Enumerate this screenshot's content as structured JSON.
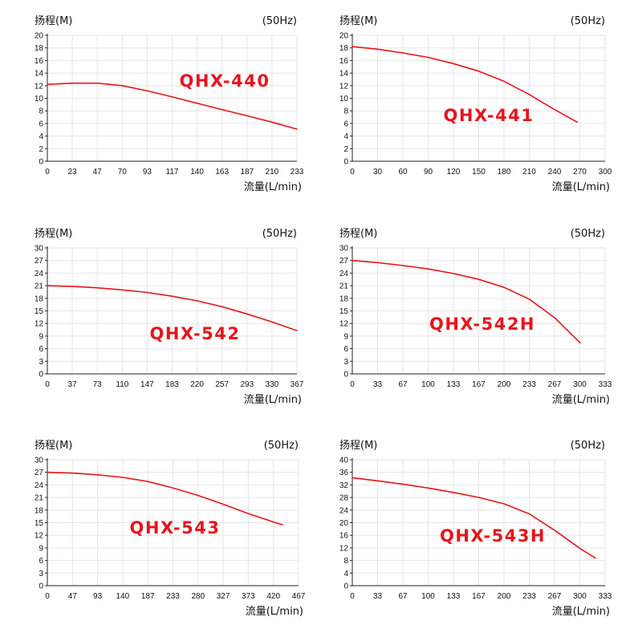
{
  "chart_data": [
    {
      "type": "line",
      "title": "QHX-440",
      "ylabel": "扬程(M)",
      "xlabel": "流量(L/min)",
      "freq_label": "(50Hz)",
      "x_ticks": [
        "0",
        "23",
        "47",
        "70",
        "93",
        "117",
        "140",
        "163",
        "187",
        "210",
        "233"
      ],
      "y_ticks": [
        "0",
        "2",
        "4",
        "6",
        "8",
        "10",
        "12",
        "14",
        "16",
        "18",
        "20"
      ],
      "xlim": [
        0,
        233
      ],
      "ylim": [
        0,
        20
      ],
      "series": [
        {
          "name": "QHX-440",
          "color": "#e8141c",
          "x": [
            0,
            23,
            47,
            70,
            93,
            117,
            140,
            163,
            187,
            210,
            233
          ],
          "y": [
            12.2,
            12.4,
            12.4,
            12.0,
            11.2,
            10.2,
            9.2,
            8.2,
            7.2,
            6.2,
            5.1
          ]
        }
      ]
    },
    {
      "type": "line",
      "title": "QHX-441",
      "ylabel": "扬程(M)",
      "xlabel": "流量(L/min)",
      "freq_label": "(50Hz)",
      "x_ticks": [
        "0",
        "30",
        "60",
        "90",
        "120",
        "150",
        "180",
        "210",
        "240",
        "270",
        "300"
      ],
      "y_ticks": [
        "0",
        "2",
        "4",
        "6",
        "8",
        "10",
        "12",
        "14",
        "16",
        "18",
        "20"
      ],
      "xlim": [
        0,
        300
      ],
      "ylim": [
        0,
        20
      ],
      "series": [
        {
          "name": "QHX-441",
          "color": "#e8141c",
          "x": [
            0,
            30,
            60,
            90,
            120,
            150,
            180,
            210,
            240,
            267
          ],
          "y": [
            18.2,
            17.8,
            17.2,
            16.5,
            15.5,
            14.3,
            12.7,
            10.6,
            8.2,
            6.2
          ]
        }
      ]
    },
    {
      "type": "line",
      "title": "QHX-542",
      "ylabel": "扬程(M)",
      "xlabel": "流量(L/min)",
      "freq_label": "(50Hz)",
      "x_ticks": [
        "0",
        "37",
        "73",
        "110",
        "147",
        "183",
        "220",
        "257",
        "293",
        "330",
        "367"
      ],
      "y_ticks": [
        "0",
        "3",
        "6",
        "9",
        "12",
        "15",
        "18",
        "21",
        "24",
        "27",
        "30"
      ],
      "xlim": [
        0,
        367
      ],
      "ylim": [
        0,
        30
      ],
      "series": [
        {
          "name": "QHX-542",
          "color": "#e8141c",
          "x": [
            0,
            37,
            73,
            110,
            147,
            183,
            220,
            257,
            293,
            330,
            367
          ],
          "y": [
            21.0,
            20.8,
            20.5,
            20.0,
            19.4,
            18.5,
            17.4,
            16.0,
            14.3,
            12.4,
            10.3
          ]
        }
      ]
    },
    {
      "type": "line",
      "title": "QHX-542H",
      "ylabel": "扬程(M)",
      "xlabel": "流量(L/min)",
      "freq_label": "(50Hz)",
      "x_ticks": [
        "0",
        "33",
        "67",
        "100",
        "133",
        "167",
        "200",
        "233",
        "267",
        "300",
        "333"
      ],
      "y_ticks": [
        "0",
        "3",
        "6",
        "9",
        "12",
        "15",
        "18",
        "21",
        "24",
        "27",
        "30"
      ],
      "xlim": [
        0,
        333
      ],
      "ylim": [
        0,
        30
      ],
      "series": [
        {
          "name": "QHX-542H",
          "color": "#e8141c",
          "x": [
            0,
            33,
            67,
            100,
            133,
            167,
            200,
            233,
            267,
            300
          ],
          "y": [
            27.0,
            26.5,
            25.8,
            25.0,
            23.9,
            22.5,
            20.6,
            17.8,
            13.3,
            7.4
          ]
        }
      ]
    },
    {
      "type": "line",
      "title": "QHX-543",
      "ylabel": "扬程(M)",
      "xlabel": "流量(L/min)",
      "freq_label": "(50Hz)",
      "x_ticks": [
        "0",
        "47",
        "93",
        "140",
        "187",
        "233",
        "280",
        "327",
        "373",
        "420",
        "467"
      ],
      "y_ticks": [
        "0",
        "3",
        "6",
        "9",
        "12",
        "15",
        "18",
        "21",
        "24",
        "27",
        "30"
      ],
      "xlim": [
        0,
        467
      ],
      "ylim": [
        0,
        30
      ],
      "series": [
        {
          "name": "QHX-543",
          "color": "#e8141c",
          "x": [
            0,
            47,
            93,
            140,
            187,
            233,
            280,
            327,
            373,
            420,
            437
          ],
          "y": [
            27.0,
            26.8,
            26.4,
            25.8,
            24.8,
            23.3,
            21.5,
            19.4,
            17.2,
            15.2,
            14.5
          ]
        }
      ]
    },
    {
      "type": "line",
      "title": "QHX-543H",
      "ylabel": "扬程(M)",
      "xlabel": "流量(L/min)",
      "freq_label": "(50Hz)",
      "x_ticks": [
        "0",
        "33",
        "67",
        "100",
        "133",
        "167",
        "200",
        "233",
        "267",
        "300",
        "333"
      ],
      "y_ticks": [
        "0",
        "4",
        "8",
        "12",
        "16",
        "20",
        "24",
        "28",
        "32",
        "36",
        "40"
      ],
      "xlim": [
        0,
        333
      ],
      "ylim": [
        0,
        40
      ],
      "series": [
        {
          "name": "QHX-543H",
          "color": "#e8141c",
          "x": [
            0,
            33,
            67,
            100,
            133,
            167,
            200,
            233,
            267,
            300,
            320
          ],
          "y": [
            34.3,
            33.3,
            32.2,
            31.0,
            29.6,
            28.0,
            26.0,
            22.8,
            17.5,
            11.8,
            8.8
          ]
        }
      ]
    }
  ]
}
